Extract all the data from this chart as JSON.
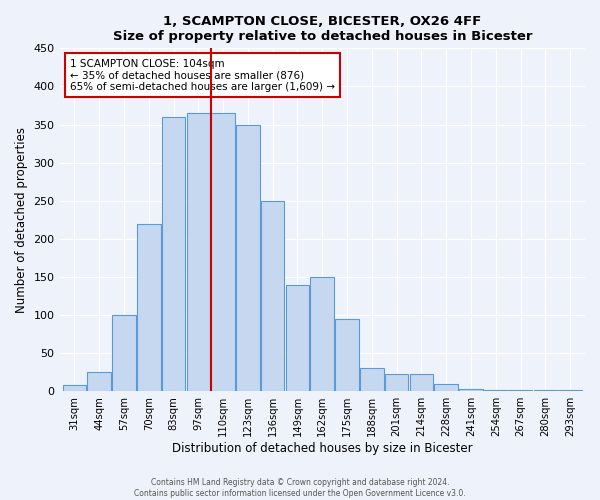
{
  "title": "1, SCAMPTON CLOSE, BICESTER, OX26 4FF",
  "subtitle": "Size of property relative to detached houses in Bicester",
  "xlabel": "Distribution of detached houses by size in Bicester",
  "ylabel": "Number of detached properties",
  "bar_labels": [
    "31sqm",
    "44sqm",
    "57sqm",
    "70sqm",
    "83sqm",
    "97sqm",
    "110sqm",
    "123sqm",
    "136sqm",
    "149sqm",
    "162sqm",
    "175sqm",
    "188sqm",
    "201sqm",
    "214sqm",
    "228sqm",
    "241sqm",
    "254sqm",
    "267sqm",
    "280sqm",
    "293sqm"
  ],
  "bar_values": [
    8,
    25,
    100,
    220,
    360,
    365,
    365,
    350,
    250,
    140,
    150,
    95,
    30,
    22,
    22,
    10,
    3,
    2,
    1,
    2,
    1
  ],
  "bar_color": "#c5d8f0",
  "bar_edge_color": "#5b9bd5",
  "vline_x": 5.5,
  "vline_color": "#cc0000",
  "annotation_title": "1 SCAMPTON CLOSE: 104sqm",
  "annotation_line1": "← 35% of detached houses are smaller (876)",
  "annotation_line2": "65% of semi-detached houses are larger (1,609) →",
  "annotation_box_color": "#ffffff",
  "annotation_box_edge": "#cc0000",
  "ylim": [
    0,
    450
  ],
  "yticks": [
    0,
    50,
    100,
    150,
    200,
    250,
    300,
    350,
    400,
    450
  ],
  "footer1": "Contains HM Land Registry data © Crown copyright and database right 2024.",
  "footer2": "Contains public sector information licensed under the Open Government Licence v3.0.",
  "bg_color": "#eef2fa"
}
